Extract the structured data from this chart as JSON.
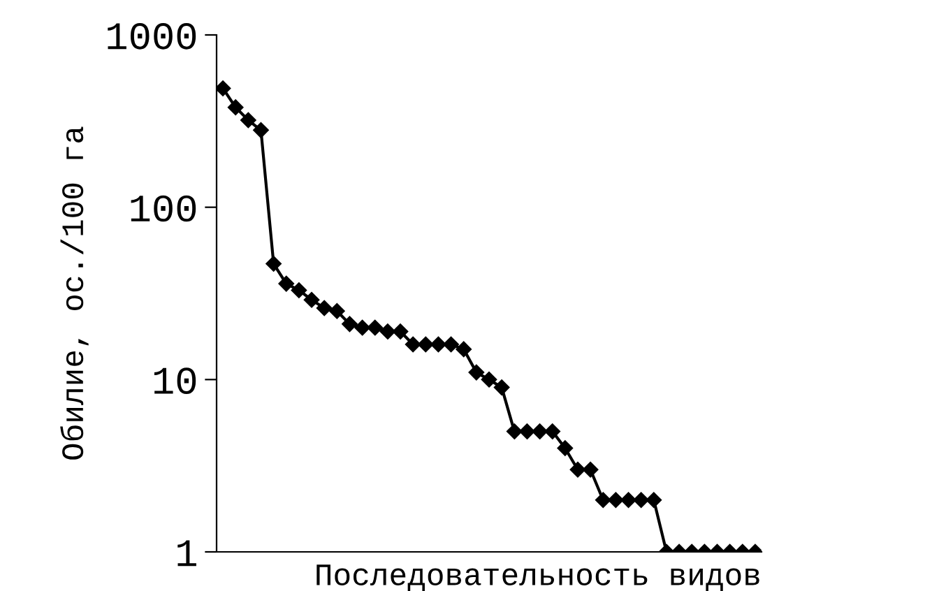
{
  "chart_data": {
    "type": "line",
    "xlabel": "Последовательность видов",
    "ylabel": "Обилие, ос./100 га",
    "categories": [
      null,
      null,
      null,
      null,
      null,
      null,
      null,
      null,
      null,
      null,
      null,
      null,
      null,
      null,
      null,
      null,
      null,
      null,
      null,
      null,
      null,
      null,
      null,
      null,
      null,
      null,
      null,
      null,
      null,
      null,
      null,
      null,
      null,
      null,
      null,
      null,
      null,
      null,
      null,
      null,
      null,
      null,
      null
    ],
    "series": [
      {
        "color": "#000000",
        "values": [
          490,
          380,
          320,
          280,
          47,
          36,
          33,
          29,
          26,
          25,
          21,
          20,
          20,
          19,
          19,
          16,
          16,
          16,
          16,
          15,
          11,
          10,
          9,
          5,
          5,
          5,
          5,
          4,
          3,
          3,
          2,
          2,
          2,
          2,
          2,
          1,
          1,
          1,
          1,
          1,
          1,
          1,
          1
        ]
      }
    ],
    "log": "y",
    "ylim": [
      1,
      1000
    ],
    "yticks": [
      1,
      10,
      100,
      1000
    ],
    "marker": "diamond",
    "line_style": "solid",
    "grid": false,
    "legend": false
  }
}
